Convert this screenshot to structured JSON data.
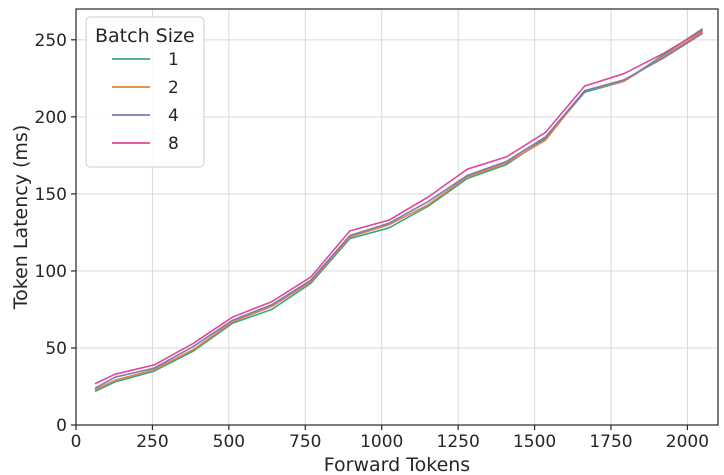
{
  "chart_data": {
    "type": "line",
    "title": "",
    "xlabel": "Forward Tokens",
    "ylabel": "Token Latency (ms)",
    "xlim": [
      0,
      2100
    ],
    "ylim": [
      0,
      270
    ],
    "x_ticks": [
      0,
      250,
      500,
      750,
      1000,
      1250,
      1500,
      1750,
      2000
    ],
    "y_ticks": [
      0,
      50,
      100,
      150,
      200,
      250
    ],
    "grid": true,
    "legend": {
      "title": "Batch Size",
      "placement": "top-left"
    },
    "x": [
      64,
      128,
      256,
      384,
      512,
      640,
      768,
      896,
      1024,
      1152,
      1280,
      1408,
      1536,
      1664,
      1792,
      1920,
      2048
    ],
    "series": [
      {
        "name": "1",
        "color": "#3aa68c",
        "values": [
          22,
          28,
          35,
          48,
          66,
          75,
          92,
          121,
          128,
          142,
          160,
          169,
          186,
          216,
          223,
          240,
          257
        ]
      },
      {
        "name": "2",
        "color": "#e0843a",
        "values": [
          23,
          29,
          36,
          49,
          67,
          77,
          93,
          122,
          130,
          143,
          161,
          170,
          185,
          217,
          223,
          239,
          255
        ]
      },
      {
        "name": "4",
        "color": "#8078b4",
        "values": [
          24,
          31,
          37,
          51,
          68,
          78,
          94,
          123,
          131,
          145,
          162,
          171,
          187,
          217,
          224,
          238,
          254
        ]
      },
      {
        "name": "8",
        "color": "#e0479a",
        "values": [
          27,
          33,
          39,
          53,
          70,
          80,
          96,
          126,
          133,
          148,
          166,
          174,
          190,
          220,
          228,
          241,
          256
        ]
      }
    ]
  }
}
